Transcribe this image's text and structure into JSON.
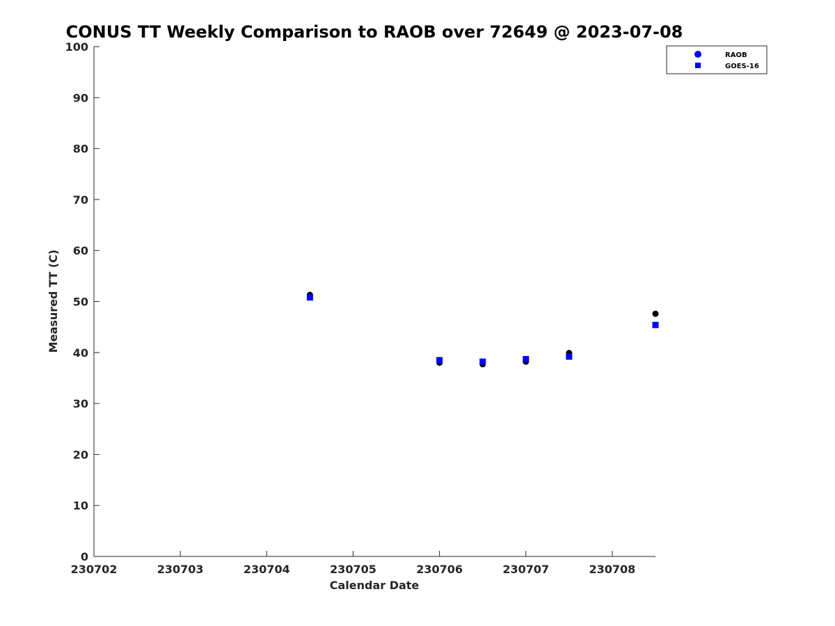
{
  "chart_data": {
    "type": "scatter",
    "title": "CONUS TT Weekly Comparison to RAOB over 72649 @ 2023-07-08",
    "xlabel": "Calendar Date",
    "ylabel": "Measured TT (C)",
    "xlim": [
      230702,
      230708.5
    ],
    "ylim": [
      0,
      100
    ],
    "x_ticks": [
      "230702",
      "230703",
      "230704",
      "230705",
      "230706",
      "230707",
      "230708"
    ],
    "y_ticks": [
      "0",
      "10",
      "20",
      "30",
      "40",
      "50",
      "60",
      "70",
      "80",
      "90",
      "100"
    ],
    "grid": false,
    "legend_position": "top-right",
    "series": [
      {
        "name": "RAOB",
        "marker": "circle",
        "color": "#000000",
        "legend_color": "#0000ff",
        "x": [
          230704.5,
          230706,
          230706.5,
          230707,
          230707.5,
          230708.5
        ],
        "y": [
          51.3,
          38.0,
          37.7,
          38.2,
          39.9,
          47.6
        ]
      },
      {
        "name": "GOES-16",
        "marker": "square",
        "color": "#0000ff",
        "legend_color": "#0000ff",
        "x": [
          230704.5,
          230706,
          230706.5,
          230707,
          230707.5,
          230708.5
        ],
        "y": [
          50.8,
          38.5,
          38.2,
          38.7,
          39.2,
          45.4
        ]
      }
    ]
  }
}
